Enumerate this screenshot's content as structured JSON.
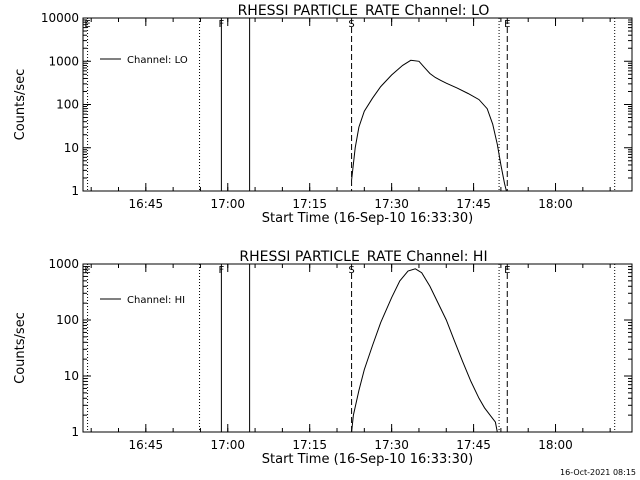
{
  "footer": {
    "timestamp": "16-Oct-2021 08:15"
  },
  "chart_data": [
    {
      "type": "line",
      "title": "RHESSI PARTICLE_RATE Channel: LO",
      "xlabel": "Start Time (16-Sep-10 16:33:30)",
      "ylabel": "Counts/sec",
      "xlim": [
        "16:33:30",
        "18:14:00"
      ],
      "ylim": [
        1,
        10000
      ],
      "y_scale": "log",
      "grid": false,
      "x_ticks": [
        "16:45",
        "17:00",
        "17:15",
        "17:30",
        "17:45",
        "18:00"
      ],
      "y_ticks": [
        "1",
        "10",
        "100",
        "1000",
        "10000"
      ],
      "legend": {
        "entries": [
          "Channel: LO"
        ],
        "position": "top-left"
      },
      "markers": [
        {
          "time": "16:34:20",
          "label": "E",
          "style": "dotted"
        },
        {
          "time": "16:54:50",
          "label": "",
          "style": "dotted"
        },
        {
          "time": "16:58:50",
          "label": "F",
          "style": "solid"
        },
        {
          "time": "17:04:00",
          "label": "",
          "style": "solid"
        },
        {
          "time": "17:22:40",
          "label": "S",
          "style": "dashed"
        },
        {
          "time": "17:51:10",
          "label": "E",
          "style": "dashed"
        },
        {
          "time": "17:49:40",
          "label": "",
          "style": "dotted"
        },
        {
          "time": "18:10:50",
          "label": "",
          "style": "dotted"
        }
      ],
      "series": [
        {
          "name": "Channel: LO",
          "x": [
            "17:22:40",
            "17:23:20",
            "17:24:00",
            "17:25:00",
            "17:26:30",
            "17:28:00",
            "17:30:00",
            "17:32:00",
            "17:33:30",
            "17:35:00",
            "17:36:00",
            "17:37:00",
            "17:38:00",
            "17:39:00",
            "17:40:00",
            "17:42:00",
            "17:44:00",
            "17:46:00",
            "17:47:30",
            "17:48:30",
            "17:49:20",
            "17:50:00",
            "17:50:40",
            "17:51:00"
          ],
          "y": [
            1.8,
            10,
            30,
            70,
            140,
            260,
            480,
            800,
            1050,
            1000,
            720,
            520,
            420,
            360,
            310,
            240,
            180,
            130,
            80,
            35,
            12,
            4,
            1.5,
            1.0
          ]
        }
      ]
    },
    {
      "type": "line",
      "title": "RHESSI PARTICLE_RATE Channel: HI",
      "xlabel": "Start Time (16-Sep-10 16:33:30)",
      "ylabel": "Counts/sec",
      "xlim": [
        "16:33:30",
        "18:14:00"
      ],
      "ylim": [
        1,
        1000
      ],
      "y_scale": "log",
      "grid": false,
      "x_ticks": [
        "16:45",
        "17:00",
        "17:15",
        "17:30",
        "17:45",
        "18:00"
      ],
      "y_ticks": [
        "1",
        "10",
        "100",
        "1000"
      ],
      "legend": {
        "entries": [
          "Channel: HI"
        ],
        "position": "top-left"
      },
      "markers": [
        {
          "time": "16:34:20",
          "label": "E",
          "style": "dotted"
        },
        {
          "time": "16:54:50",
          "label": "",
          "style": "dotted"
        },
        {
          "time": "16:58:50",
          "label": "F",
          "style": "solid"
        },
        {
          "time": "17:04:00",
          "label": "",
          "style": "solid"
        },
        {
          "time": "17:22:40",
          "label": "S",
          "style": "dashed"
        },
        {
          "time": "17:51:10",
          "label": "E",
          "style": "dashed"
        },
        {
          "time": "17:49:40",
          "label": "",
          "style": "dotted"
        },
        {
          "time": "18:10:50",
          "label": "",
          "style": "dotted"
        }
      ],
      "series": [
        {
          "name": "Channel: HI",
          "x": [
            "17:22:40",
            "17:23:00",
            "17:24:00",
            "17:25:00",
            "17:26:30",
            "17:28:00",
            "17:30:00",
            "17:31:30",
            "17:33:00",
            "17:34:20",
            "17:35:30",
            "17:37:00",
            "17:38:30",
            "17:40:00",
            "17:41:30",
            "17:43:00",
            "17:44:30",
            "17:46:00",
            "17:47:00",
            "17:48:00",
            "17:49:00",
            "17:49:20"
          ],
          "y": [
            1.0,
            2.0,
            5.5,
            13,
            35,
            90,
            250,
            500,
            750,
            820,
            700,
            400,
            200,
            100,
            42,
            18,
            8,
            4,
            2.7,
            2.0,
            1.5,
            1.0
          ]
        }
      ]
    }
  ]
}
